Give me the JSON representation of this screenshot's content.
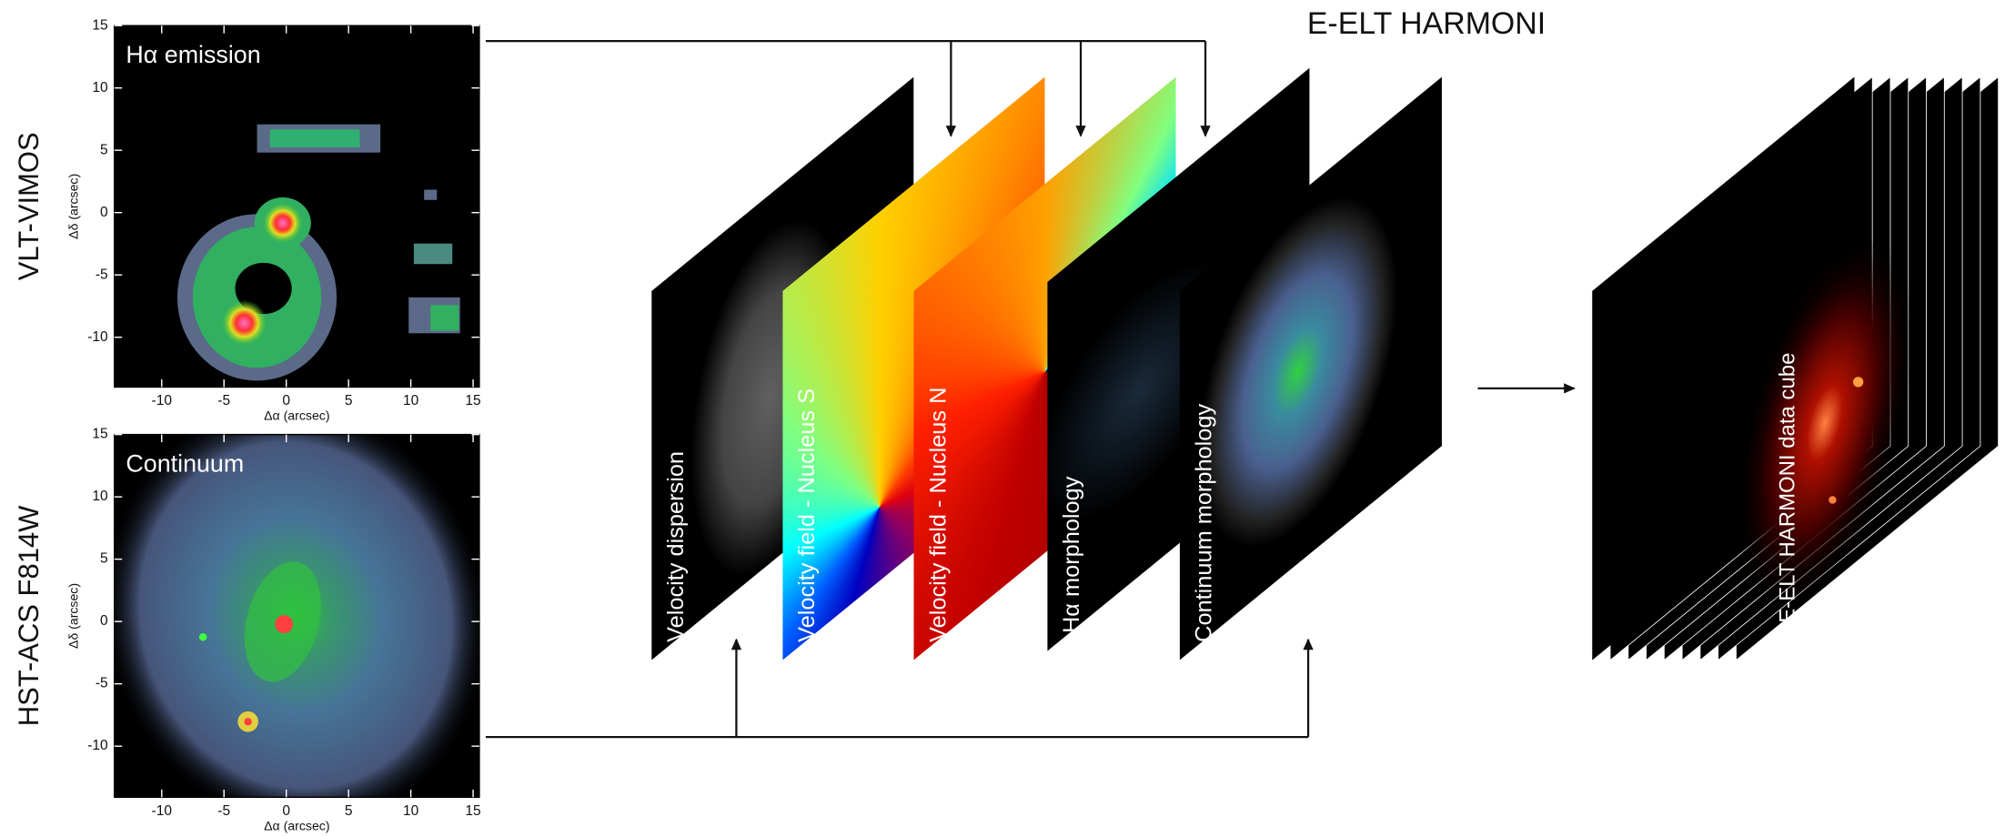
{
  "header": {
    "title": "E-ELT HARMONI"
  },
  "panels": [
    {
      "instrument": "VLT-VIMOS",
      "title": "Hα emission",
      "x_label": "Δα (arcsec)",
      "y_label": "Δδ (arcsec)",
      "xlim": [
        -13.8,
        15.5
      ],
      "ylim": [
        -14,
        15
      ],
      "xticks": [
        -10,
        -5,
        0,
        5,
        10,
        15
      ],
      "yticks": [
        -10,
        -5,
        0,
        5,
        10,
        15
      ]
    },
    {
      "instrument": "HST-ACS F814W",
      "title": "Continuum",
      "x_label": "Δα (arcsec)",
      "y_label": "Δδ (arcsec)",
      "xlim": [
        -13.8,
        15.5
      ],
      "ylim": [
        -14.1,
        15
      ],
      "xticks": [
        -10,
        -5,
        0,
        5,
        10,
        15
      ],
      "yticks": [
        -10,
        -5,
        0,
        5,
        10,
        15
      ]
    }
  ],
  "layers": [
    "Velocity dispersion",
    "Velocity field - Nucleus S",
    "Velocity field - Nucleus N",
    "Hα morphology",
    "Continuum morphology"
  ],
  "cube": {
    "label": "E-ELT HARMONI data cube"
  }
}
